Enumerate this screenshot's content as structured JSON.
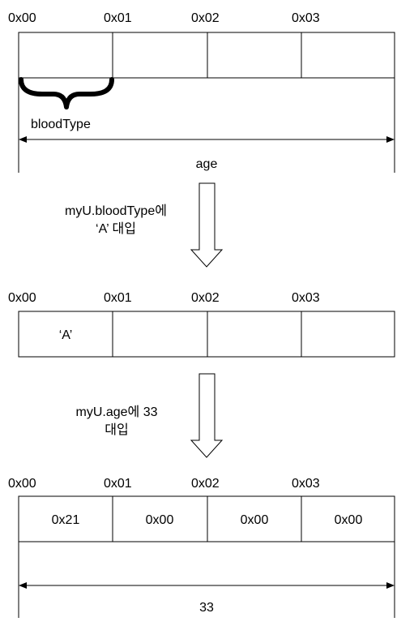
{
  "stages": [
    {
      "addresses": [
        "0x00",
        "0x01",
        "0x02",
        "0x03"
      ],
      "cells": [
        "",
        "",
        "",
        ""
      ],
      "brace_label": "bloodType",
      "span_label": "age"
    },
    {
      "addresses": [
        "0x00",
        "0x01",
        "0x02",
        "0x03"
      ],
      "cells": [
        "‘A’",
        "",
        "",
        ""
      ]
    },
    {
      "addresses": [
        "0x00",
        "0x01",
        "0x02",
        "0x03"
      ],
      "cells": [
        "0x21",
        "0x00",
        "0x00",
        "0x00"
      ],
      "span_label": "33"
    }
  ],
  "transitions": [
    {
      "lines": [
        "myU.bloodType에",
        "‘A’ 대입"
      ]
    },
    {
      "lines": [
        "myU.age에 33",
        "대입"
      ]
    }
  ]
}
